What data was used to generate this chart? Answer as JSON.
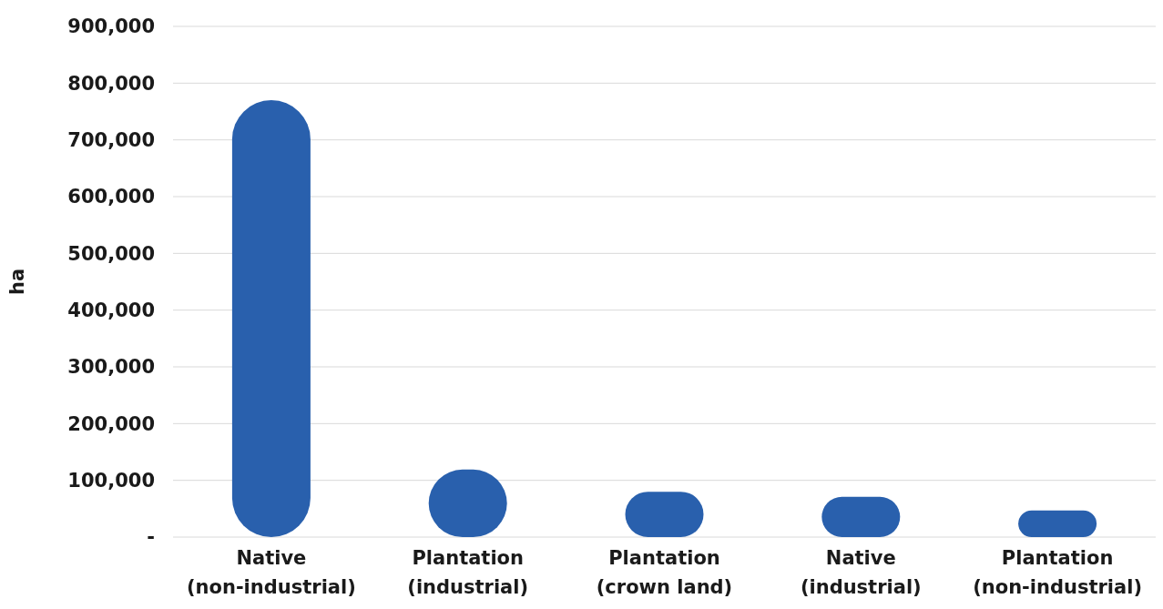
{
  "chart_data": {
    "type": "bar",
    "ylabel": "ha",
    "categories": [
      "Native (non-industrial)",
      "Plantation (industrial)",
      "Plantation (crown land)",
      "Native (industrial)",
      "Plantation (non-industrial)"
    ],
    "values": [
      770000,
      119000,
      80000,
      71000,
      47000
    ],
    "color": "#2960ad",
    "ylim": [
      0,
      900000
    ],
    "yticks": [
      {
        "value": 0,
        "label": "-"
      },
      {
        "value": 100000,
        "label": "100,000"
      },
      {
        "value": 200000,
        "label": "200,000"
      },
      {
        "value": 300000,
        "label": "300,000"
      },
      {
        "value": 400000,
        "label": "400,000"
      },
      {
        "value": 500000,
        "label": "500,000"
      },
      {
        "value": 600000,
        "label": "600,000"
      },
      {
        "value": 700000,
        "label": "700,000"
      },
      {
        "value": 800000,
        "label": "800,000"
      },
      {
        "value": 900000,
        "label": "900,000"
      }
    ],
    "grid": "y"
  }
}
